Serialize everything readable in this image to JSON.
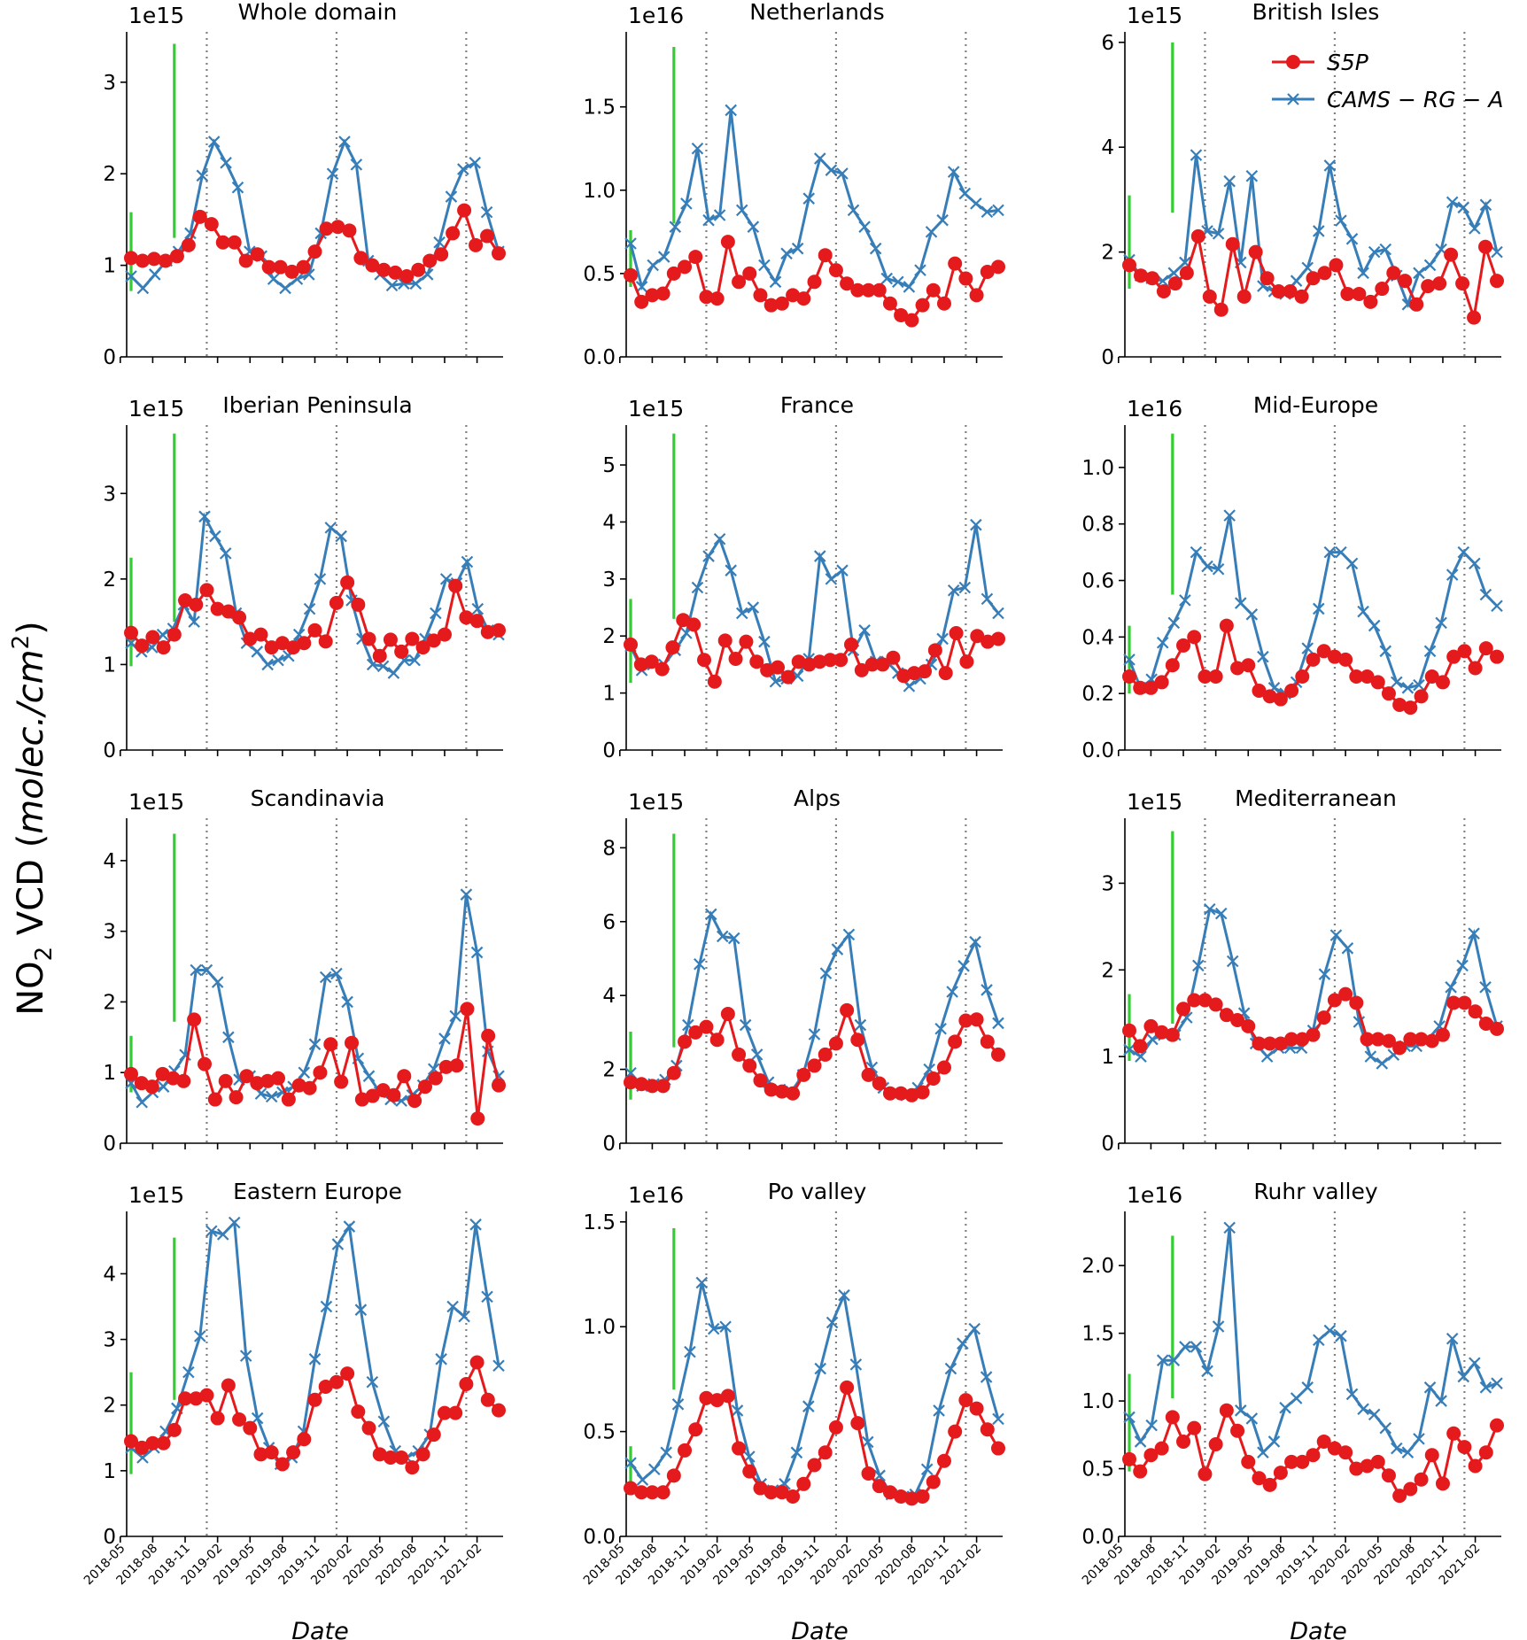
{
  "figure": {
    "ylabel_main": "NO",
    "ylabel_sub": "2",
    "ylabel_mid": " VCD (",
    "ylabel_italic": "molec./cm",
    "ylabel_sup": "2",
    "ylabel_end": ")",
    "xlabel": "Date",
    "legend": [
      {
        "name": "S5P",
        "color": "#e41a1c",
        "marker": "circle"
      },
      {
        "name": "CAMS − RG − A",
        "color": "#377eb8",
        "marker": "x"
      }
    ],
    "legend_placement": "top-right of British Isles panel",
    "green_color": "#33cc33"
  },
  "chart_data": [
    {
      "type": "line",
      "title": "Whole domain",
      "multiplier": "1e15",
      "ylim": [
        0,
        3.55
      ],
      "yticks": [
        0,
        1,
        2,
        3
      ],
      "s5p": [
        1.08,
        1.05,
        1.07,
        1.05,
        1.1,
        1.22,
        1.53,
        1.45,
        1.25,
        1.25,
        1.05,
        1.12,
        0.98,
        0.98,
        0.93,
        0.98,
        1.15,
        1.4,
        1.42,
        1.38,
        1.08,
        1.0,
        0.95,
        0.92,
        0.88,
        0.95,
        1.05,
        1.12,
        1.35,
        1.6,
        1.22,
        1.32,
        1.13
      ],
      "cams": [
        0.88,
        0.75,
        0.9,
        1.05,
        1.15,
        1.35,
        1.98,
        2.35,
        2.12,
        1.85,
        1.15,
        1.1,
        0.85,
        0.75,
        0.85,
        0.9,
        1.35,
        2.0,
        2.35,
        2.1,
        1.05,
        0.9,
        0.78,
        0.8,
        0.8,
        0.9,
        1.25,
        1.75,
        2.05,
        2.12,
        1.58,
        1.15
      ],
      "green": [
        {
          "x": 1,
          "y0": 0.72,
          "y1": 1.58
        },
        {
          "x": 5,
          "y0": 1.3,
          "y1": 3.42
        }
      ]
    },
    {
      "type": "line",
      "title": "Netherlands",
      "multiplier": "1e16",
      "ylim": [
        0,
        1.95
      ],
      "yticks": [
        0.0,
        0.5,
        1.0,
        1.5
      ],
      "s5p": [
        0.49,
        0.33,
        0.37,
        0.38,
        0.5,
        0.54,
        0.6,
        0.36,
        0.35,
        0.69,
        0.45,
        0.5,
        0.37,
        0.31,
        0.32,
        0.37,
        0.35,
        0.45,
        0.61,
        0.52,
        0.44,
        0.4,
        0.4,
        0.4,
        0.32,
        0.25,
        0.22,
        0.31,
        0.4,
        0.32,
        0.56,
        0.47,
        0.37,
        0.51,
        0.54
      ],
      "cams": [
        0.68,
        0.42,
        0.55,
        0.6,
        0.78,
        0.92,
        1.25,
        0.82,
        0.85,
        1.48,
        0.88,
        0.78,
        0.55,
        0.45,
        0.62,
        0.65,
        0.95,
        1.19,
        1.12,
        1.1,
        0.88,
        0.78,
        0.65,
        0.47,
        0.45,
        0.42,
        0.52,
        0.75,
        0.82,
        1.11,
        0.98,
        0.92,
        0.87,
        0.88
      ],
      "green": [
        {
          "x": 1,
          "y0": 0.42,
          "y1": 0.76
        },
        {
          "x": 5,
          "y0": 0.8,
          "y1": 1.86
        }
      ]
    },
    {
      "type": "line",
      "title": "British Isles",
      "multiplier": "1e15",
      "ylim": [
        0,
        6.2
      ],
      "yticks": [
        0,
        2,
        4,
        6
      ],
      "s5p": [
        1.75,
        1.55,
        1.5,
        1.25,
        1.4,
        1.6,
        2.3,
        1.15,
        0.9,
        2.15,
        1.15,
        2.0,
        1.5,
        1.25,
        1.25,
        1.15,
        1.5,
        1.6,
        1.75,
        1.2,
        1.2,
        1.05,
        1.3,
        1.6,
        1.45,
        1.0,
        1.35,
        1.4,
        1.95,
        1.4,
        0.75,
        2.1,
        1.45
      ],
      "cams": [
        1.85,
        1.55,
        1.5,
        1.45,
        1.6,
        1.8,
        3.85,
        2.4,
        2.35,
        3.35,
        1.8,
        3.45,
        1.35,
        1.25,
        1.2,
        1.45,
        1.7,
        2.4,
        3.65,
        2.6,
        2.25,
        1.6,
        2.0,
        2.05,
        1.55,
        1.0,
        1.6,
        1.75,
        2.05,
        2.95,
        2.85,
        2.45,
        2.9,
        2.0
      ],
      "green": [
        {
          "x": 1,
          "y0": 1.3,
          "y1": 3.08
        },
        {
          "x": 5,
          "y0": 2.75,
          "y1": 6.0
        }
      ]
    },
    {
      "type": "line",
      "title": "Iberian Peninsula",
      "multiplier": "1e15",
      "ylim": [
        0,
        3.8
      ],
      "yticks": [
        0,
        1,
        2,
        3
      ],
      "s5p": [
        1.37,
        1.22,
        1.32,
        1.2,
        1.35,
        1.75,
        1.7,
        1.87,
        1.65,
        1.62,
        1.55,
        1.3,
        1.35,
        1.2,
        1.25,
        1.2,
        1.25,
        1.4,
        1.27,
        1.72,
        1.96,
        1.7,
        1.3,
        1.1,
        1.29,
        1.15,
        1.3,
        1.2,
        1.28,
        1.35,
        1.92,
        1.55,
        1.51,
        1.38,
        1.4
      ],
      "cams": [
        1.25,
        1.15,
        1.2,
        1.35,
        1.42,
        1.7,
        1.5,
        2.73,
        2.5,
        2.3,
        1.6,
        1.25,
        1.15,
        1.0,
        1.05,
        1.1,
        1.35,
        1.65,
        2.0,
        2.6,
        2.5,
        1.75,
        1.3,
        1.0,
        0.98,
        0.9,
        1.05,
        1.05,
        1.3,
        1.6,
        2.0,
        1.95,
        2.2,
        1.65,
        1.4,
        1.35
      ],
      "green": [
        {
          "x": 1,
          "y0": 0.98,
          "y1": 2.25
        },
        {
          "x": 5,
          "y0": 1.5,
          "y1": 3.7
        }
      ]
    },
    {
      "type": "line",
      "title": "France",
      "multiplier": "1e15",
      "ylim": [
        0,
        5.7
      ],
      "yticks": [
        0,
        1,
        2,
        3,
        4,
        5
      ],
      "s5p": [
        1.85,
        1.5,
        1.55,
        1.42,
        1.8,
        2.28,
        2.2,
        1.58,
        1.2,
        1.92,
        1.6,
        1.9,
        1.55,
        1.4,
        1.45,
        1.28,
        1.55,
        1.5,
        1.55,
        1.58,
        1.58,
        1.85,
        1.4,
        1.5,
        1.5,
        1.62,
        1.3,
        1.35,
        1.38,
        1.75,
        1.35,
        2.05,
        1.55,
        2.0,
        1.9,
        1.95
      ],
      "cams": [
        1.82,
        1.4,
        1.5,
        1.5,
        1.75,
        2.05,
        2.85,
        3.4,
        3.7,
        3.15,
        2.4,
        2.5,
        1.9,
        1.2,
        1.25,
        1.3,
        1.6,
        3.4,
        3.0,
        3.15,
        1.75,
        2.1,
        1.55,
        1.55,
        1.35,
        1.12,
        1.25,
        1.5,
        1.95,
        2.8,
        2.85,
        3.95,
        2.65,
        2.4
      ],
      "green": [
        {
          "x": 1,
          "y0": 1.18,
          "y1": 2.65
        },
        {
          "x": 5,
          "y0": 2.3,
          "y1": 5.55
        }
      ]
    },
    {
      "type": "line",
      "title": "Mid-Europe",
      "multiplier": "1e16",
      "ylim": [
        0,
        1.15
      ],
      "yticks": [
        0.0,
        0.2,
        0.4,
        0.6,
        0.8,
        1.0
      ],
      "s5p": [
        0.26,
        0.22,
        0.22,
        0.24,
        0.3,
        0.37,
        0.4,
        0.26,
        0.26,
        0.44,
        0.29,
        0.3,
        0.21,
        0.19,
        0.18,
        0.21,
        0.26,
        0.32,
        0.35,
        0.33,
        0.32,
        0.26,
        0.26,
        0.24,
        0.2,
        0.16,
        0.15,
        0.19,
        0.26,
        0.24,
        0.33,
        0.35,
        0.29,
        0.36,
        0.33
      ],
      "cams": [
        0.32,
        0.22,
        0.25,
        0.38,
        0.45,
        0.53,
        0.7,
        0.65,
        0.64,
        0.83,
        0.52,
        0.48,
        0.33,
        0.22,
        0.2,
        0.24,
        0.36,
        0.5,
        0.7,
        0.7,
        0.66,
        0.49,
        0.44,
        0.35,
        0.24,
        0.22,
        0.23,
        0.35,
        0.45,
        0.62,
        0.7,
        0.66,
        0.55,
        0.51
      ],
      "green": [
        {
          "x": 1,
          "y0": 0.2,
          "y1": 0.44
        },
        {
          "x": 5,
          "y0": 0.55,
          "y1": 1.12
        }
      ]
    },
    {
      "type": "line",
      "title": "Scandinavia",
      "multiplier": "1e15",
      "ylim": [
        0,
        4.6
      ],
      "yticks": [
        0,
        1,
        2,
        3,
        4
      ],
      "s5p": [
        0.98,
        0.85,
        0.8,
        0.98,
        0.92,
        0.88,
        1.75,
        1.12,
        0.62,
        0.88,
        0.65,
        0.95,
        0.85,
        0.88,
        0.92,
        0.62,
        0.82,
        0.78,
        1.0,
        1.4,
        0.87,
        1.42,
        0.62,
        0.67,
        0.75,
        0.68,
        0.95,
        0.6,
        0.8,
        0.92,
        1.08,
        1.1,
        1.9,
        0.35,
        1.52,
        0.82
      ],
      "cams": [
        0.85,
        0.58,
        0.72,
        0.8,
        1.02,
        1.25,
        2.45,
        2.45,
        2.28,
        1.5,
        0.9,
        0.95,
        0.7,
        0.66,
        0.72,
        0.8,
        1.0,
        1.4,
        2.35,
        2.4,
        2.0,
        1.2,
        0.95,
        0.72,
        0.62,
        0.6,
        0.68,
        0.82,
        1.05,
        1.48,
        1.8,
        3.52,
        2.7,
        1.3,
        0.95
      ],
      "green": [
        {
          "x": 1,
          "y0": 0.72,
          "y1": 1.52
        },
        {
          "x": 5,
          "y0": 1.72,
          "y1": 4.38
        }
      ]
    },
    {
      "type": "line",
      "title": "Alps",
      "multiplier": "1e15",
      "ylim": [
        0,
        8.8
      ],
      "yticks": [
        0,
        2,
        4,
        6,
        8
      ],
      "s5p": [
        1.65,
        1.6,
        1.55,
        1.55,
        1.9,
        2.75,
        3.0,
        3.15,
        2.8,
        3.5,
        2.4,
        2.1,
        1.7,
        1.45,
        1.4,
        1.35,
        1.85,
        2.1,
        2.4,
        2.7,
        3.6,
        2.8,
        1.85,
        1.62,
        1.35,
        1.35,
        1.3,
        1.38,
        1.75,
        2.05,
        2.75,
        3.32,
        3.35,
        2.75,
        2.4
      ],
      "cams": [
        1.9,
        1.55,
        1.6,
        1.72,
        2.1,
        3.2,
        4.85,
        6.2,
        5.6,
        5.55,
        3.2,
        2.4,
        1.65,
        1.45,
        1.4,
        1.85,
        2.95,
        4.6,
        5.25,
        5.65,
        3.2,
        2.05,
        1.5,
        1.35,
        1.3,
        1.5,
        2.0,
        3.1,
        4.1,
        4.8,
        5.45,
        4.15,
        3.25
      ],
      "green": [
        {
          "x": 1,
          "y0": 1.18,
          "y1": 3.02
        },
        {
          "x": 5,
          "y0": 2.6,
          "y1": 8.38
        }
      ]
    },
    {
      "type": "line",
      "title": "Mediterranean",
      "multiplier": "1e15",
      "ylim": [
        0,
        3.75
      ],
      "yticks": [
        0,
        1,
        2,
        3
      ],
      "s5p": [
        1.3,
        1.12,
        1.35,
        1.28,
        1.25,
        1.55,
        1.65,
        1.65,
        1.6,
        1.48,
        1.42,
        1.35,
        1.15,
        1.15,
        1.15,
        1.2,
        1.2,
        1.25,
        1.45,
        1.65,
        1.72,
        1.62,
        1.2,
        1.2,
        1.18,
        1.1,
        1.2,
        1.2,
        1.18,
        1.25,
        1.62,
        1.62,
        1.52,
        1.38,
        1.32
      ],
      "cams": [
        1.08,
        1.0,
        1.2,
        1.25,
        1.25,
        1.45,
        2.05,
        2.7,
        2.65,
        2.1,
        1.5,
        1.15,
        1.0,
        1.1,
        1.1,
        1.1,
        1.3,
        1.95,
        2.4,
        2.25,
        1.4,
        1.0,
        0.92,
        1.02,
        1.12,
        1.12,
        1.2,
        1.35,
        1.8,
        2.05,
        2.42,
        1.8,
        1.35
      ],
      "green": [
        {
          "x": 1,
          "y0": 0.95,
          "y1": 1.72
        },
        {
          "x": 5,
          "y0": 1.38,
          "y1": 3.6
        }
      ]
    },
    {
      "type": "line",
      "title": "Eastern Europe",
      "multiplier": "1e15",
      "ylim": [
        0,
        4.95
      ],
      "yticks": [
        0,
        1,
        2,
        3,
        4
      ],
      "s5p": [
        1.45,
        1.35,
        1.42,
        1.42,
        1.62,
        2.1,
        2.1,
        2.15,
        1.8,
        2.3,
        1.78,
        1.65,
        1.25,
        1.28,
        1.1,
        1.28,
        1.48,
        2.08,
        2.28,
        2.35,
        2.48,
        1.9,
        1.65,
        1.25,
        1.2,
        1.2,
        1.05,
        1.25,
        1.55,
        1.88,
        1.88,
        2.32,
        2.65,
        2.08,
        1.92
      ],
      "cams": [
        1.35,
        1.2,
        1.35,
        1.6,
        1.95,
        2.5,
        3.05,
        4.65,
        4.6,
        4.78,
        2.75,
        1.8,
        1.35,
        1.1,
        1.2,
        1.6,
        2.7,
        3.5,
        4.45,
        4.72,
        3.45,
        2.35,
        1.75,
        1.3,
        1.2,
        1.3,
        1.55,
        2.7,
        3.5,
        3.35,
        4.75,
        3.65,
        2.6
      ],
      "green": [
        {
          "x": 1,
          "y0": 0.95,
          "y1": 2.5
        },
        {
          "x": 5,
          "y0": 2.08,
          "y1": 4.55
        }
      ]
    },
    {
      "type": "line",
      "title": "Po valley",
      "multiplier": "1e16",
      "ylim": [
        0,
        1.55
      ],
      "yticks": [
        0.0,
        0.5,
        1.0,
        1.5
      ],
      "s5p": [
        0.23,
        0.21,
        0.21,
        0.21,
        0.29,
        0.41,
        0.51,
        0.66,
        0.65,
        0.67,
        0.42,
        0.31,
        0.23,
        0.21,
        0.21,
        0.19,
        0.25,
        0.34,
        0.4,
        0.52,
        0.71,
        0.54,
        0.3,
        0.24,
        0.21,
        0.19,
        0.18,
        0.19,
        0.26,
        0.36,
        0.5,
        0.65,
        0.61,
        0.51,
        0.42
      ],
      "cams": [
        0.35,
        0.27,
        0.32,
        0.4,
        0.63,
        0.88,
        1.21,
        0.99,
        1.0,
        0.6,
        0.38,
        0.25,
        0.22,
        0.25,
        0.4,
        0.62,
        0.8,
        1.02,
        1.15,
        0.82,
        0.45,
        0.29,
        0.2,
        0.19,
        0.2,
        0.32,
        0.6,
        0.8,
        0.92,
        0.99,
        0.76,
        0.56
      ],
      "green": [
        {
          "x": 1,
          "y0": 0.24,
          "y1": 0.43
        },
        {
          "x": 5,
          "y0": 0.7,
          "y1": 1.47
        }
      ]
    },
    {
      "type": "line",
      "title": "Ruhr valley",
      "multiplier": "1e16",
      "ylim": [
        0,
        2.4
      ],
      "yticks": [
        0.0,
        0.5,
        1.0,
        1.5,
        2.0
      ],
      "s5p": [
        0.57,
        0.48,
        0.6,
        0.65,
        0.88,
        0.7,
        0.8,
        0.46,
        0.68,
        0.93,
        0.78,
        0.55,
        0.43,
        0.38,
        0.47,
        0.55,
        0.55,
        0.6,
        0.7,
        0.65,
        0.62,
        0.5,
        0.52,
        0.55,
        0.45,
        0.3,
        0.35,
        0.42,
        0.6,
        0.39,
        0.76,
        0.66,
        0.52,
        0.62,
        0.82
      ],
      "cams": [
        0.88,
        0.7,
        0.82,
        1.3,
        1.3,
        1.4,
        1.4,
        1.22,
        1.55,
        2.28,
        0.93,
        0.87,
        0.62,
        0.7,
        0.95,
        1.02,
        1.1,
        1.45,
        1.52,
        1.48,
        1.05,
        0.94,
        0.9,
        0.8,
        0.65,
        0.62,
        0.72,
        1.1,
        1.0,
        1.46,
        1.18,
        1.28,
        1.1,
        1.13
      ],
      "green": [
        {
          "x": 1,
          "y0": 0.48,
          "y1": 1.2
        },
        {
          "x": 5,
          "y0": 1.02,
          "y1": 2.22
        }
      ]
    }
  ],
  "x_axis": {
    "start": "2018-05",
    "tick_labels": [
      "2018-05",
      "2018-08",
      "2018-11",
      "2019-02",
      "2019-05",
      "2019-08",
      "2019-11",
      "2020-02",
      "2020-05",
      "2020-08",
      "2020-11",
      "2021-02"
    ],
    "vlines": [
      "2019-01",
      "2020-01",
      "2021-01"
    ],
    "ticks_on_bottom_row_only": true
  }
}
